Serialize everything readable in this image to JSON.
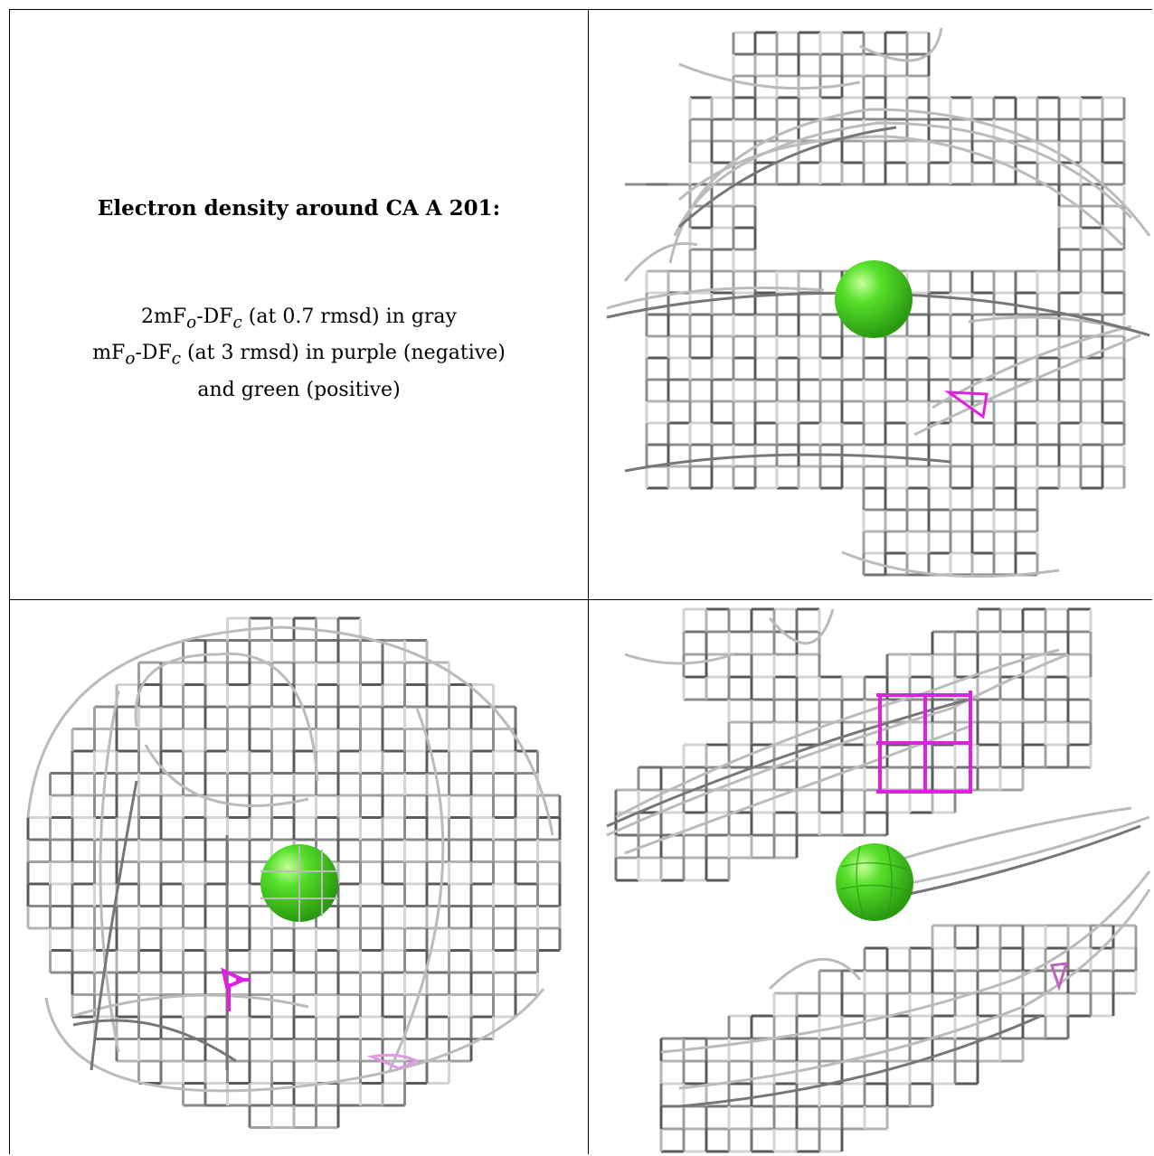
{
  "caption": {
    "title": "Electron density around CA A 201:",
    "line1_prefix": "2mF",
    "line1_sub1": "o",
    "line1_mid": "-DF",
    "line1_sub2": "c",
    "line1_suffix": " (at 0.7 rmsd) in gray",
    "line2_prefix": "mF",
    "line2_sub1": "o",
    "line2_mid": "-DF",
    "line2_sub2": "c",
    "line2_suffix": " (at 3 rmsd) in purple (negative)",
    "line3": "and green (positive)"
  },
  "colors": {
    "mesh_dark": "#555555",
    "mesh_mid": "#8a8a8a",
    "mesh_light": "#cfcfcf",
    "negative": "#e020e0",
    "positive": "#44dd22"
  },
  "panels": [
    {
      "name": "top-right-view",
      "icon": "calcium-sphere"
    },
    {
      "name": "bottom-left-view",
      "icon": "calcium-sphere"
    },
    {
      "name": "bottom-right-view",
      "icon": "calcium-sphere"
    }
  ]
}
